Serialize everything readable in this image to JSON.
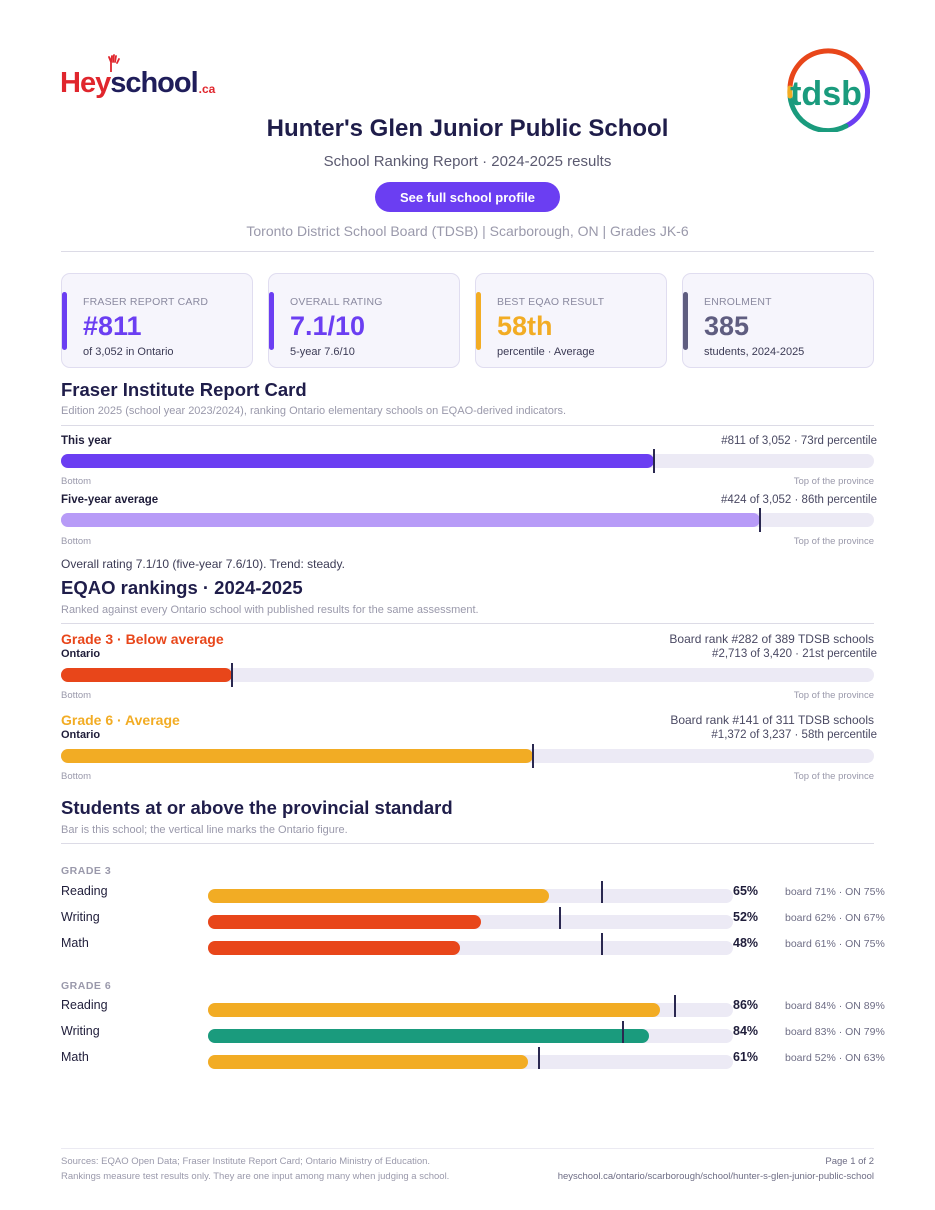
{
  "brand": {
    "heyschool_hey": "Hey",
    "heyschool_school": "school",
    "heyschool_ca": ".ca",
    "tdsb": "tdsb",
    "accent": "#6b3ef2"
  },
  "header": {
    "title": "Hunter's Glen Junior Public School",
    "subtitle": "School Ranking Report  ·  2024-2025 results",
    "cta": "See full school profile",
    "meta": "Toronto District School Board (TDSB)  |  Scarborough, ON  |  Grades JK-6"
  },
  "cards": [
    {
      "label": "FRASER REPORT CARD",
      "value": "#811",
      "sub": "of 3,052 in Ontario",
      "color": "#6b3ef2"
    },
    {
      "label": "OVERALL RATING",
      "value": "7.1/10",
      "sub": "5-year 7.6/10",
      "color": "#6b3ef2"
    },
    {
      "label": "BEST EQAO RESULT",
      "value": "58th",
      "sub": "percentile  ·  Average",
      "color": "#f2ac24"
    },
    {
      "label": "ENROLMENT",
      "value": "385",
      "sub": "students, 2024-2025",
      "color": "#5f5d80"
    }
  ],
  "fraser": {
    "heading": "Fraser Institute Report Card",
    "note": "Edition 2025 (school year 2023/2024), ranking Ontario elementary schools on EQAO-derived indicators.",
    "this_year": {
      "label": "This year",
      "right": "#811 of 3,052  ·  73rd percentile",
      "percentile": 73,
      "color": "#6b3ef2"
    },
    "five_year": {
      "label": "Five-year average",
      "right": "#424 of 3,052  ·  86th percentile",
      "percentile": 86,
      "color": "#b79bf7"
    },
    "bottom": "Bottom",
    "top": "Top of the province",
    "summary": "Overall rating 7.1/10 (five-year 7.6/10). Trend: steady."
  },
  "eqao": {
    "heading": "EQAO rankings  ·  2024-2025",
    "note": "Ranked against every Ontario school with published results for the same assessment.",
    "grades": [
      {
        "title": "Grade 3  ·  Below average",
        "board": "Board rank #282 of 389 TDSB schools",
        "scope": "Ontario",
        "right": "#2,713 of 3,420  ·  21st percentile",
        "percentile": 21,
        "color": "#e8461a"
      },
      {
        "title": "Grade 6  ·  Average",
        "board": "Board rank #141 of 311 TDSB schools",
        "scope": "Ontario",
        "right": "#1,372 of 3,237  ·  58th percentile",
        "percentile": 58,
        "color": "#f2ac24"
      }
    ],
    "bottom": "Bottom",
    "top": "Top of the province"
  },
  "standard": {
    "heading": "Students at or above the provincial standard",
    "note": "Bar is this school; the vertical line marks the Ontario figure.",
    "groups": [
      {
        "label": "GRADE 3",
        "rows": [
          {
            "subject": "Reading",
            "pct_label": "65%",
            "value": 65,
            "ontario": 75,
            "compare": "board 71%  ·  ON 75%",
            "color": "#f2ac24"
          },
          {
            "subject": "Writing",
            "pct_label": "52%",
            "value": 52,
            "ontario": 67,
            "compare": "board 62%  ·  ON 67%",
            "color": "#e8461a"
          },
          {
            "subject": "Math",
            "pct_label": "48%",
            "value": 48,
            "ontario": 75,
            "compare": "board 61%  ·  ON 75%",
            "color": "#e8461a"
          }
        ]
      },
      {
        "label": "GRADE 6",
        "rows": [
          {
            "subject": "Reading",
            "pct_label": "86%",
            "value": 86,
            "ontario": 89,
            "compare": "board 84%  ·  ON 89%",
            "color": "#f2ac24"
          },
          {
            "subject": "Writing",
            "pct_label": "84%",
            "value": 84,
            "ontario": 79,
            "compare": "board 83%  ·  ON 79%",
            "color": "#1a9b7d"
          },
          {
            "subject": "Math",
            "pct_label": "61%",
            "value": 61,
            "ontario": 63,
            "compare": "board 52%  ·  ON 63%",
            "color": "#f2ac24"
          }
        ]
      }
    ]
  },
  "footer": {
    "sources": "Sources: EQAO Open Data; Fraser Institute Report Card; Ontario Ministry of Education.",
    "disclaimer": "Rankings measure test results only. They are one input among many when judging a school.",
    "page": "Page 1 of 2",
    "url": "heyschool.ca/ontario/scarborough/school/hunter-s-glen-junior-public-school"
  }
}
